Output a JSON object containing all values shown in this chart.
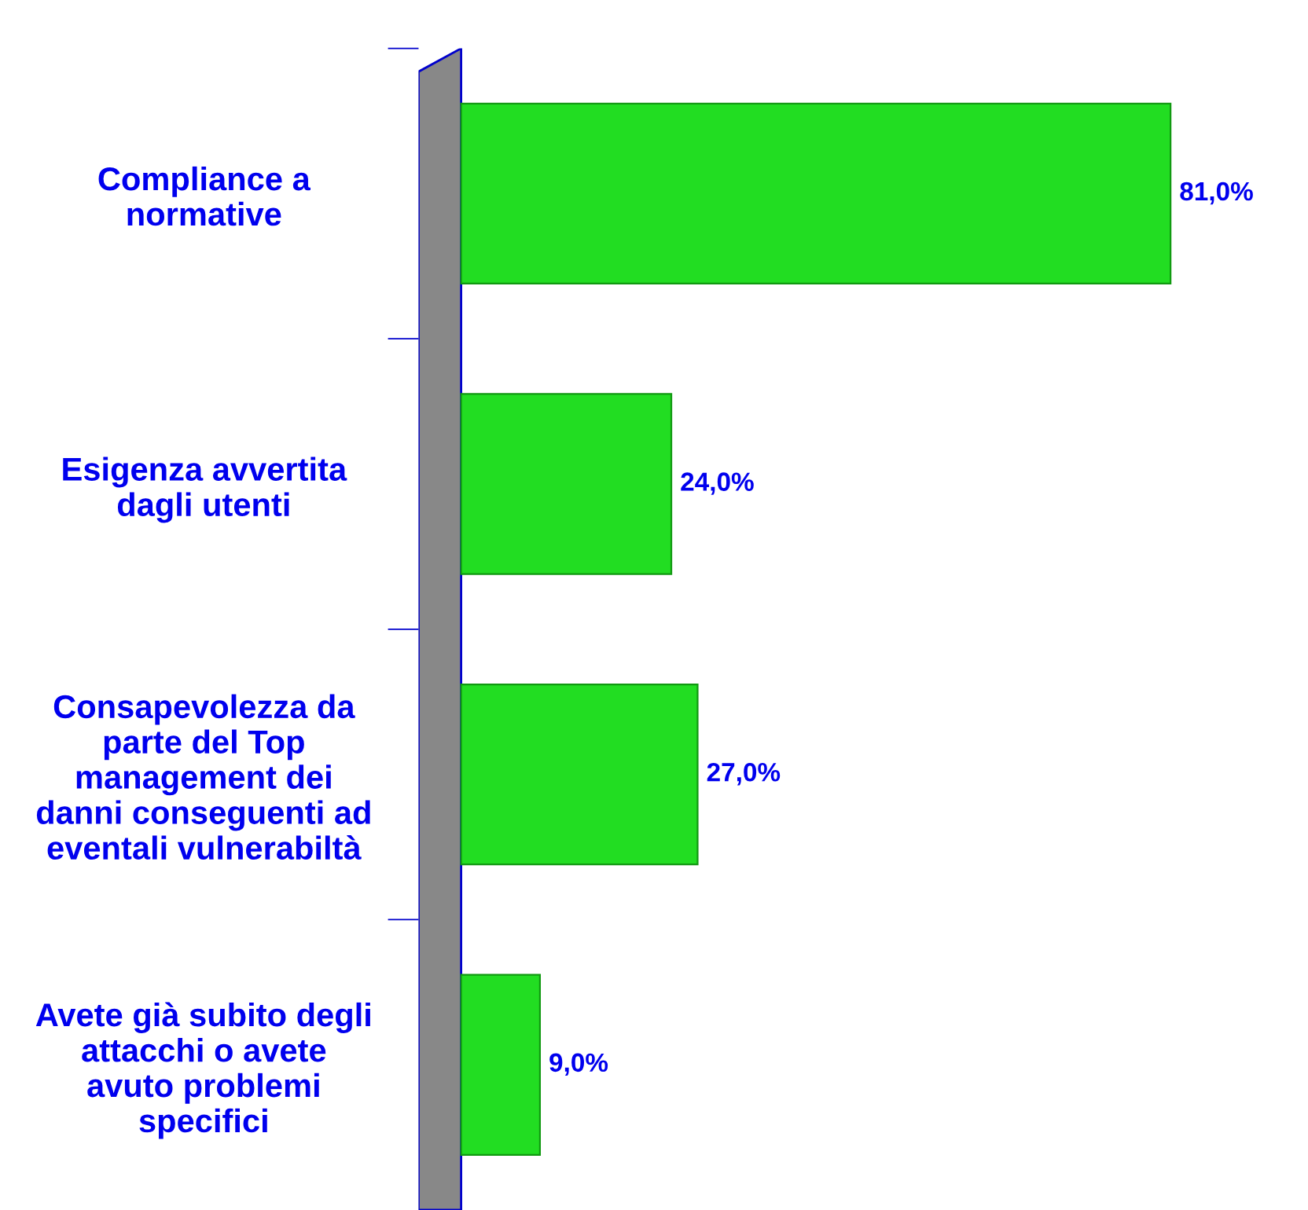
{
  "chart_data": {
    "type": "bar",
    "orientation": "horizontal",
    "categories": [
      "Compliance a\nnormative",
      "Esigenza avvertita\ndagli utenti",
      "Consapevolezza da\nparte del Top\nmanagement dei\ndanni conseguenti ad\neventali vulnerabiltà",
      "Avete già subito degli\nattacchi o avete\navuto problemi\nspecifici"
    ],
    "values": [
      81,
      24,
      27,
      9
    ],
    "value_labels": [
      "81,0%",
      "24,0%",
      "27,0%",
      "9,0%"
    ],
    "color": "#22dd22",
    "grid": false,
    "legend": false
  }
}
